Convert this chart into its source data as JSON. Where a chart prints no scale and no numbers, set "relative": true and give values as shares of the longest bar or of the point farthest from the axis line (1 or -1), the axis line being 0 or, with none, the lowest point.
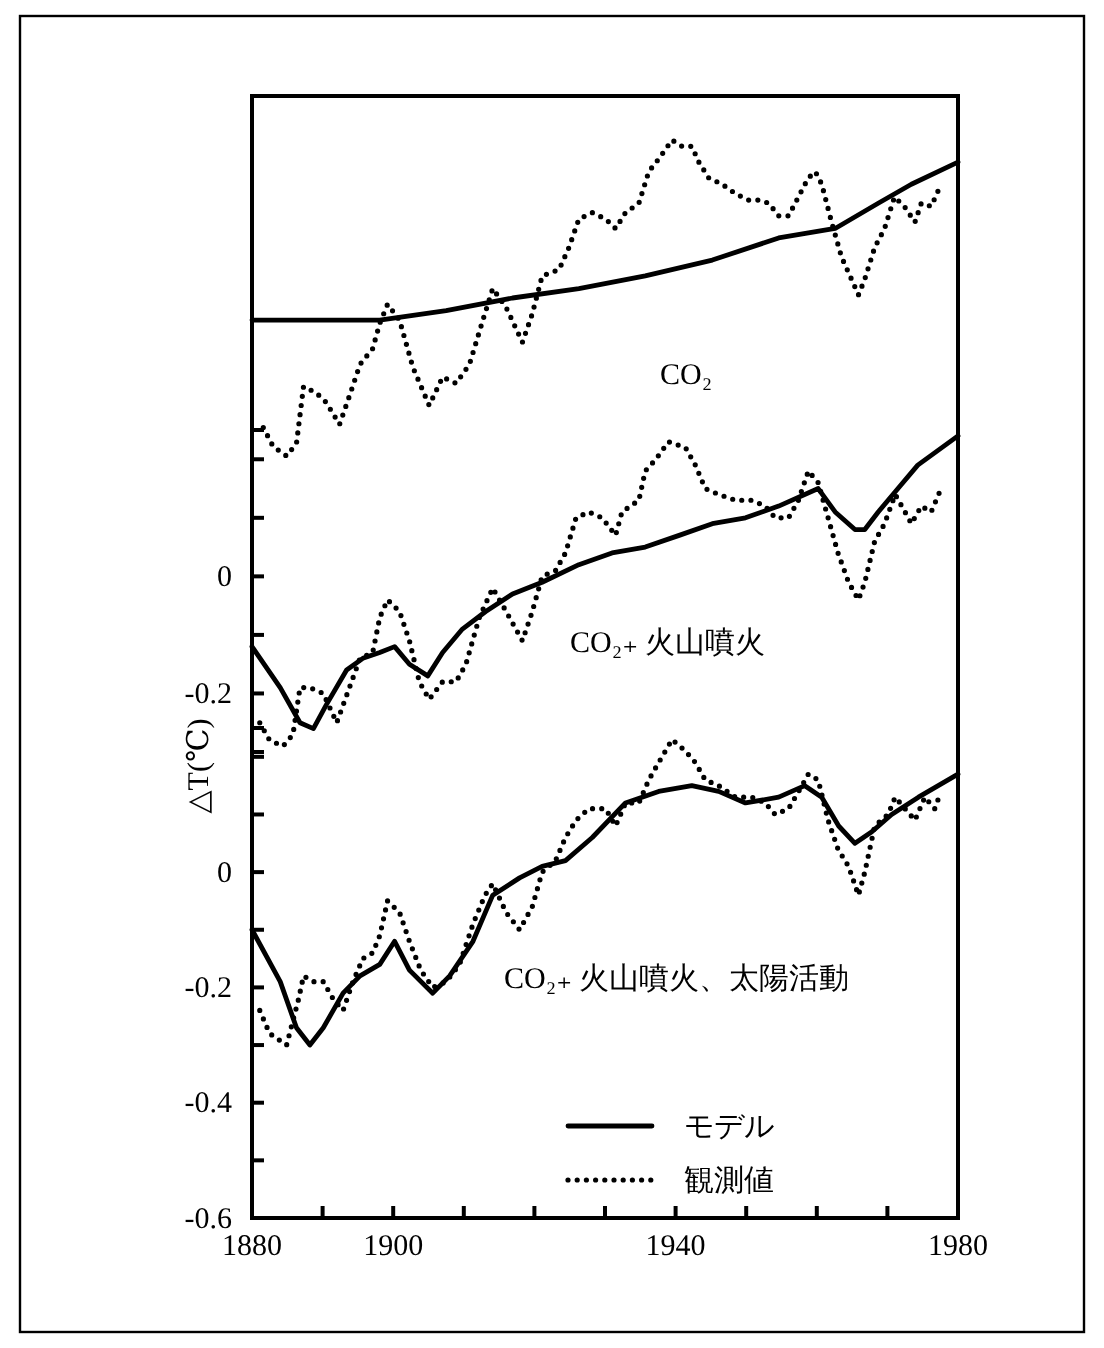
{
  "chart_data": [
    {
      "type": "line",
      "relative": true,
      "tick_labels": false,
      "xlim": [
        1880,
        1980
      ],
      "annotations": [
        "CO₂"
      ],
      "series": [
        {
          "color": "#000000",
          "line_style": "solid",
          "x": [
            1880,
            1898.1,
            1907.5,
            1916.9,
            1926.3,
            1935.7,
            1945.2,
            1954.6,
            1962.6,
            1968.7,
            1973.4,
            1980
          ],
          "values": [
            0.43,
            0.43,
            0.46,
            0.5,
            0.53,
            0.57,
            0.62,
            0.69,
            0.72,
            0.8,
            0.86,
            0.93
          ]
        },
        {
          "color": "#000000",
          "line_style": "dotted",
          "x": [
            1881.6,
            1883,
            1884.9,
            1886.3,
            1887.3,
            1889.1,
            1890.5,
            1892.4,
            1893.8,
            1895.3,
            1897.1,
            1898.1,
            1899.2,
            1900.9,
            1902.8,
            1905.1,
            1907,
            1908.9,
            1910.8,
            1912.7,
            1914.1,
            1916,
            1918.3,
            1919.7,
            1921.1,
            1923.5,
            1924.9,
            1926.3,
            1928.2,
            1930.1,
            1931.5,
            1932.9,
            1934.8,
            1936.2,
            1937.6,
            1939.5,
            1940.9,
            1942.3,
            1943.3,
            1944.7,
            1946.6,
            1948.5,
            1950.3,
            1951.8,
            1953.2,
            1954.6,
            1956,
            1957.4,
            1958.8,
            1959.8,
            1960.7,
            1962.1,
            1963.5,
            1964.9,
            1965.9,
            1966.8,
            1968.2,
            1969.6,
            1971,
            1972.4,
            1973.9,
            1974.8,
            1976.2,
            1977.6
          ],
          "values": [
            0.09,
            0.03,
            0,
            0.04,
            0.22,
            0.2,
            0.17,
            0.1,
            0.19,
            0.29,
            0.34,
            0.42,
            0.48,
            0.43,
            0.28,
            0.16,
            0.25,
            0.23,
            0.29,
            0.43,
            0.53,
            0.47,
            0.36,
            0.45,
            0.57,
            0.59,
            0.66,
            0.75,
            0.77,
            0.75,
            0.72,
            0.77,
            0.8,
            0.9,
            0.94,
            1,
            0.98,
            0.98,
            0.93,
            0.88,
            0.86,
            0.83,
            0.81,
            0.81,
            0.8,
            0.76,
            0.76,
            0.82,
            0.88,
            0.9,
            0.86,
            0.74,
            0.63,
            0.56,
            0.51,
            0.56,
            0.66,
            0.72,
            0.82,
            0.79,
            0.74,
            0.8,
            0.79,
            0.86
          ]
        }
      ]
    },
    {
      "type": "line",
      "tick_labels": "y",
      "xlim": [
        1880,
        1980
      ],
      "ylim": [
        -0.3,
        0.25
      ],
      "yticks": [
        -0.2,
        {
          "value": -0.1,
          "label": null
        },
        0,
        {
          "value": 0.1,
          "label": null
        },
        {
          "value": 0.2,
          "label": null
        }
      ],
      "annotations": [
        "CO₂₊ 火山噴火"
      ],
      "series": [
        {
          "color": "#000000",
          "line_style": "solid",
          "x": [
            1880,
            1884,
            1886.8,
            1888.7,
            1890.5,
            1893.4,
            1895.7,
            1898.1,
            1900.2,
            1902.3,
            1904.9,
            1907,
            1909.8,
            1913.1,
            1916.9,
            1921.1,
            1926.3,
            1931,
            1935.7,
            1940.5,
            1945.2,
            1949.9,
            1954.6,
            1960.2,
            1962.6,
            1965.4,
            1966.8,
            1968.7,
            1971.5,
            1974.3,
            1980
          ],
          "values": [
            -0.12,
            -0.19,
            -0.25,
            -0.26,
            -0.22,
            -0.16,
            -0.14,
            -0.13,
            -0.12,
            -0.15,
            -0.17,
            -0.13,
            -0.09,
            -0.06,
            -0.03,
            -0.01,
            0.02,
            0.04,
            0.05,
            0.07,
            0.09,
            0.1,
            0.12,
            0.15,
            0.11,
            0.08,
            0.08,
            0.11,
            0.15,
            0.19,
            0.24
          ]
        },
        {
          "color": "#000000",
          "line_style": "dotted",
          "x": [
            1881.1,
            1882.5,
            1884.4,
            1885.8,
            1886.8,
            1888.2,
            1890.1,
            1892,
            1893.8,
            1895.3,
            1897.1,
            1898.1,
            1899.2,
            1900.9,
            1902.3,
            1903.7,
            1905.1,
            1907,
            1908.9,
            1910.3,
            1912.2,
            1914.1,
            1916,
            1918.3,
            1919.7,
            1921.1,
            1923,
            1924.4,
            1925.9,
            1927.7,
            1929.6,
            1931.5,
            1932.4,
            1934.8,
            1935.7,
            1937.2,
            1939,
            1941.4,
            1942.8,
            1944.2,
            1946.1,
            1948.5,
            1950.8,
            1952.7,
            1954.1,
            1956,
            1957.4,
            1958.8,
            1960.2,
            1961.6,
            1963,
            1964.5,
            1965.9,
            1966.8,
            1968.2,
            1969.6,
            1971.1,
            1972.5,
            1973.4,
            1974.8,
            1976.2,
            1977.6
          ],
          "values": [
            -0.25,
            -0.28,
            -0.29,
            -0.27,
            -0.19,
            -0.19,
            -0.2,
            -0.25,
            -0.19,
            -0.14,
            -0.13,
            -0.07,
            -0.04,
            -0.06,
            -0.11,
            -0.18,
            -0.21,
            -0.18,
            -0.18,
            -0.15,
            -0.07,
            -0.02,
            -0.06,
            -0.11,
            -0.06,
            0,
            0.01,
            0.04,
            0.1,
            0.11,
            0.1,
            0.07,
            0.11,
            0.13,
            0.18,
            0.2,
            0.23,
            0.22,
            0.19,
            0.15,
            0.14,
            0.13,
            0.13,
            0.12,
            0.1,
            0.1,
            0.13,
            0.18,
            0.16,
            0.1,
            0.04,
            -0.01,
            -0.04,
            -0.01,
            0.06,
            0.09,
            0.14,
            0.11,
            0.09,
            0.12,
            0.11,
            0.15
          ]
        }
      ]
    },
    {
      "type": "line",
      "xlim": [
        1880,
        1980
      ],
      "xticks": [
        1880,
        {
          "value": 1890,
          "label": null
        },
        1900,
        {
          "value": 1910,
          "label": null
        },
        {
          "value": 1920,
          "label": null
        },
        {
          "value": 1930,
          "label": null
        },
        1940,
        {
          "value": 1950,
          "label": null
        },
        {
          "value": 1960,
          "label": null
        },
        {
          "value": 1970,
          "label": null
        },
        1980
      ],
      "ylim": [
        -0.6,
        0.25
      ],
      "yticks": [
        -0.6,
        {
          "value": -0.5,
          "label": null
        },
        -0.4,
        {
          "value": -0.3,
          "label": null
        },
        -0.2,
        {
          "value": -0.1,
          "label": null
        },
        0,
        {
          "value": 0.1,
          "label": null
        },
        {
          "value": 0.2,
          "label": null
        }
      ],
      "ylabel": "△T(℃)",
      "legend": "bottom",
      "annotations": [
        "CO₂₊ 火山噴火、太陽活動"
      ],
      "series": [
        {
          "name": "モデル",
          "color": "#000000",
          "line_style": "solid",
          "x": [
            1880,
            1884,
            1886.3,
            1888.2,
            1890.1,
            1892.9,
            1895.3,
            1898.1,
            1900.2,
            1902.3,
            1905.6,
            1908,
            1911.3,
            1914.1,
            1917.9,
            1921.1,
            1924.4,
            1928.2,
            1932.9,
            1937.6,
            1942.3,
            1946.1,
            1949.9,
            1954.6,
            1958.3,
            1960.7,
            1963.1,
            1965.4,
            1967.8,
            1970.6,
            1974.4,
            1980
          ],
          "values": [
            -0.1,
            -0.19,
            -0.27,
            -0.3,
            -0.27,
            -0.21,
            -0.18,
            -0.16,
            -0.12,
            -0.17,
            -0.21,
            -0.18,
            -0.12,
            -0.04,
            -0.01,
            0.01,
            0.02,
            0.06,
            0.12,
            0.14,
            0.15,
            0.14,
            0.12,
            0.13,
            0.15,
            0.13,
            0.08,
            0.05,
            0.07,
            0.1,
            0.13,
            0.17
          ]
        },
        {
          "name": "観測値",
          "color": "#000000",
          "line_style": "dotted",
          "x": [
            1881.1,
            1882.5,
            1884.9,
            1886.6,
            1887.3,
            1888.7,
            1890.1,
            1891.5,
            1892.9,
            1894.3,
            1895.7,
            1897.1,
            1898.1,
            1899.2,
            1900.9,
            1902.3,
            1903.9,
            1905.6,
            1907.5,
            1909.4,
            1911.3,
            1913,
            1914.1,
            1916,
            1917.9,
            1919.7,
            1921.1,
            1923,
            1924.4,
            1925.9,
            1927.7,
            1930.1,
            1931.5,
            1932.9,
            1934.8,
            1936.2,
            1937.6,
            1939.5,
            1941.4,
            1942.8,
            1944.2,
            1946.1,
            1948.5,
            1950.8,
            1952.7,
            1954.1,
            1956,
            1957.9,
            1958.8,
            1960.2,
            1961.6,
            1963,
            1964.5,
            1965.9,
            1966.8,
            1968.2,
            1970.1,
            1971.1,
            1972.5,
            1973.9,
            1975.3,
            1976.7,
            1977.6
          ],
          "values": [
            -0.24,
            -0.28,
            -0.3,
            -0.22,
            -0.18,
            -0.19,
            -0.19,
            -0.22,
            -0.24,
            -0.19,
            -0.15,
            -0.14,
            -0.11,
            -0.05,
            -0.07,
            -0.12,
            -0.17,
            -0.2,
            -0.19,
            -0.16,
            -0.09,
            -0.04,
            -0.02,
            -0.07,
            -0.1,
            -0.06,
            0,
            0.02,
            0.06,
            0.09,
            0.11,
            0.11,
            0.08,
            0.12,
            0.12,
            0.16,
            0.19,
            0.23,
            0.21,
            0.19,
            0.16,
            0.15,
            0.13,
            0.13,
            0.12,
            0.1,
            0.11,
            0.15,
            0.17,
            0.16,
            0.09,
            0.04,
            0.01,
            -0.04,
            0,
            0.08,
            0.1,
            0.13,
            0.11,
            0.09,
            0.13,
            0.11,
            0.14
          ]
        }
      ]
    }
  ]
}
